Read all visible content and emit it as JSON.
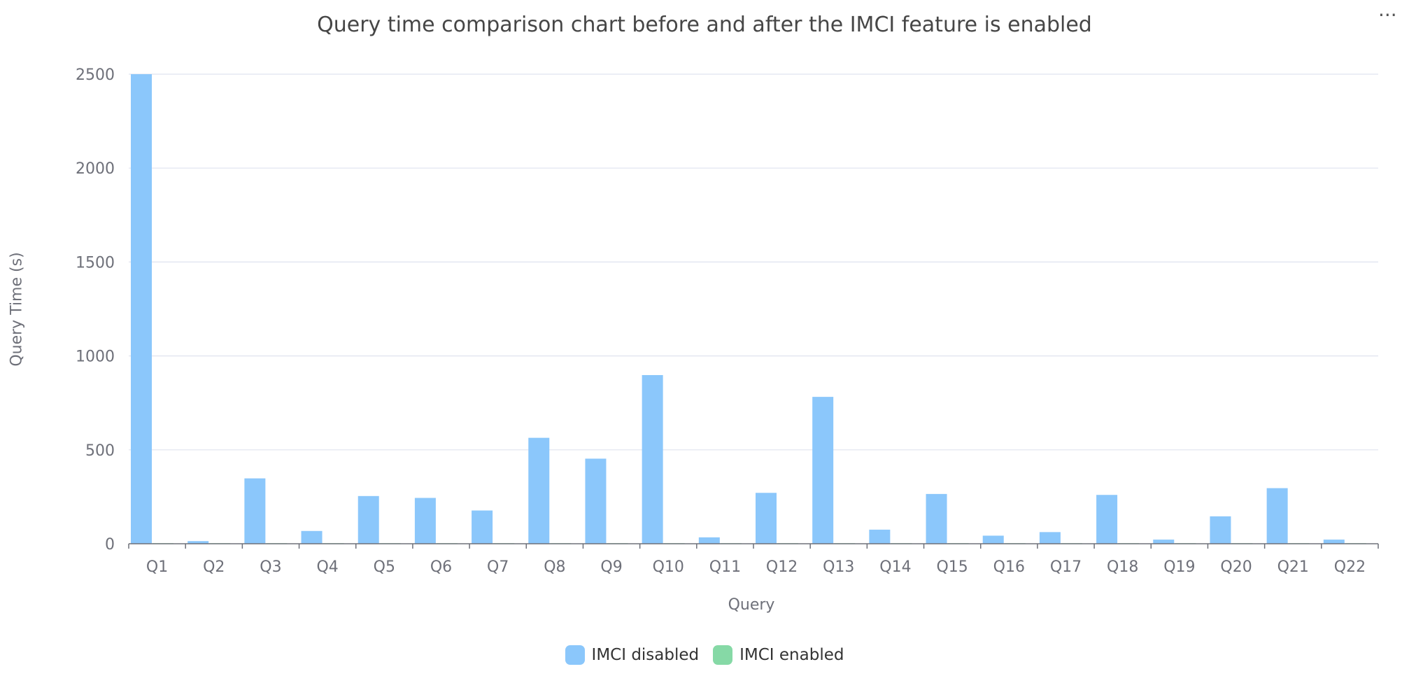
{
  "chart_data": {
    "type": "bar",
    "title": "Query time comparison chart before and after the IMCI feature is enabled",
    "xlabel": "Query",
    "ylabel": "Query Time (s)",
    "ylim": [
      0,
      2500
    ],
    "yticks": [
      0,
      500,
      1000,
      1500,
      2000,
      2500
    ],
    "grid": true,
    "legend_position": "bottom-center",
    "categories": [
      "Q1",
      "Q2",
      "Q3",
      "Q4",
      "Q5",
      "Q6",
      "Q7",
      "Q8",
      "Q9",
      "Q10",
      "Q11",
      "Q12",
      "Q13",
      "Q14",
      "Q15",
      "Q16",
      "Q17",
      "Q18",
      "Q19",
      "Q20",
      "Q21",
      "Q22"
    ],
    "series": [
      {
        "name": "IMCI disabled",
        "color": "#8bc7fb",
        "values": [
          2500,
          14,
          348,
          68,
          254,
          244,
          177,
          564,
          453,
          898,
          34,
          271,
          782,
          75,
          265,
          43,
          62,
          260,
          22,
          146,
          296,
          22
        ]
      },
      {
        "name": "IMCI enabled",
        "color": "#86d9a6",
        "values": [
          3,
          2,
          2,
          2,
          2,
          1,
          2,
          2,
          3,
          3,
          2,
          2,
          3,
          1,
          2,
          2,
          1,
          3,
          2,
          2,
          3,
          2
        ]
      }
    ]
  },
  "toolbar": {
    "more_icon": "more-horizontal-icon",
    "more_glyph": "···"
  }
}
